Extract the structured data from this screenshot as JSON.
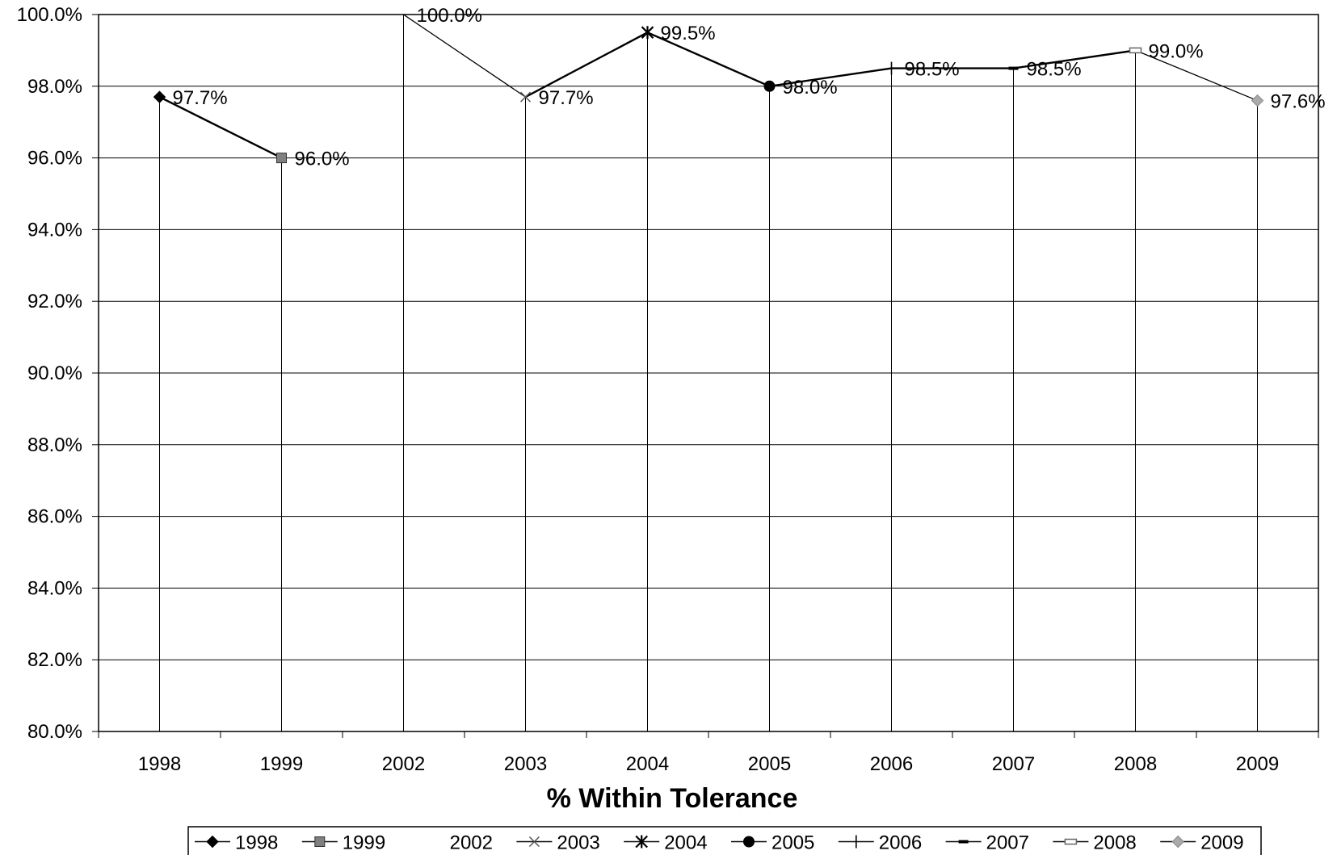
{
  "chart_data": {
    "type": "line",
    "title": "% Within Tolerance",
    "xlabel": "",
    "ylabel": "",
    "categories": [
      "1998",
      "1999",
      "2002",
      "2003",
      "2004",
      "2005",
      "2006",
      "2007",
      "2008",
      "2009"
    ],
    "ylim": [
      80,
      100
    ],
    "ytick_labels": [
      "80.0%",
      "82.0%",
      "84.0%",
      "86.0%",
      "88.0%",
      "90.0%",
      "92.0%",
      "94.0%",
      "96.0%",
      "98.0%",
      "100.0%"
    ],
    "grid": true,
    "legend_position": "bottom",
    "series": [
      {
        "name": "1998",
        "x": "1998",
        "value": 97.7,
        "label": "97.7%",
        "marker": "diamond",
        "color": "#000000"
      },
      {
        "name": "1999",
        "x": "1999",
        "value": 96.0,
        "label": "96.0%",
        "marker": "square",
        "color": "#808080"
      },
      {
        "name": "2002",
        "x": "2002",
        "value": 100.0,
        "label": "100.0%",
        "marker": "none",
        "color": "#000000"
      },
      {
        "name": "2003",
        "x": "2003",
        "value": 97.7,
        "label": "97.7%",
        "marker": "x",
        "color": "#555555"
      },
      {
        "name": "2004",
        "x": "2004",
        "value": 99.5,
        "label": "99.5%",
        "marker": "star",
        "color": "#000000"
      },
      {
        "name": "2005",
        "x": "2005",
        "value": 98.0,
        "label": "98.0%",
        "marker": "circle",
        "color": "#000000"
      },
      {
        "name": "2006",
        "x": "2006",
        "value": 98.5,
        "label": "98.5%",
        "marker": "plus",
        "color": "#000000"
      },
      {
        "name": "2007",
        "x": "2007",
        "value": 98.5,
        "label": "98.5%",
        "marker": "dash",
        "color": "#000000"
      },
      {
        "name": "2008",
        "x": "2008",
        "value": 99.0,
        "label": "99.0%",
        "marker": "hollow-dash",
        "color": "#666666"
      },
      {
        "name": "2009",
        "x": "2009",
        "value": 97.6,
        "label": "97.6%",
        "marker": "diamond",
        "color": "#aaaaaa"
      }
    ],
    "connecting_segments": [
      [
        "1998",
        "1999"
      ],
      [
        "2002",
        "2003"
      ],
      [
        "2003",
        "2004"
      ],
      [
        "2004",
        "2005"
      ],
      [
        "2005",
        "2006"
      ],
      [
        "2006",
        "2007"
      ],
      [
        "2007",
        "2008"
      ],
      [
        "2008",
        "2009"
      ]
    ]
  }
}
